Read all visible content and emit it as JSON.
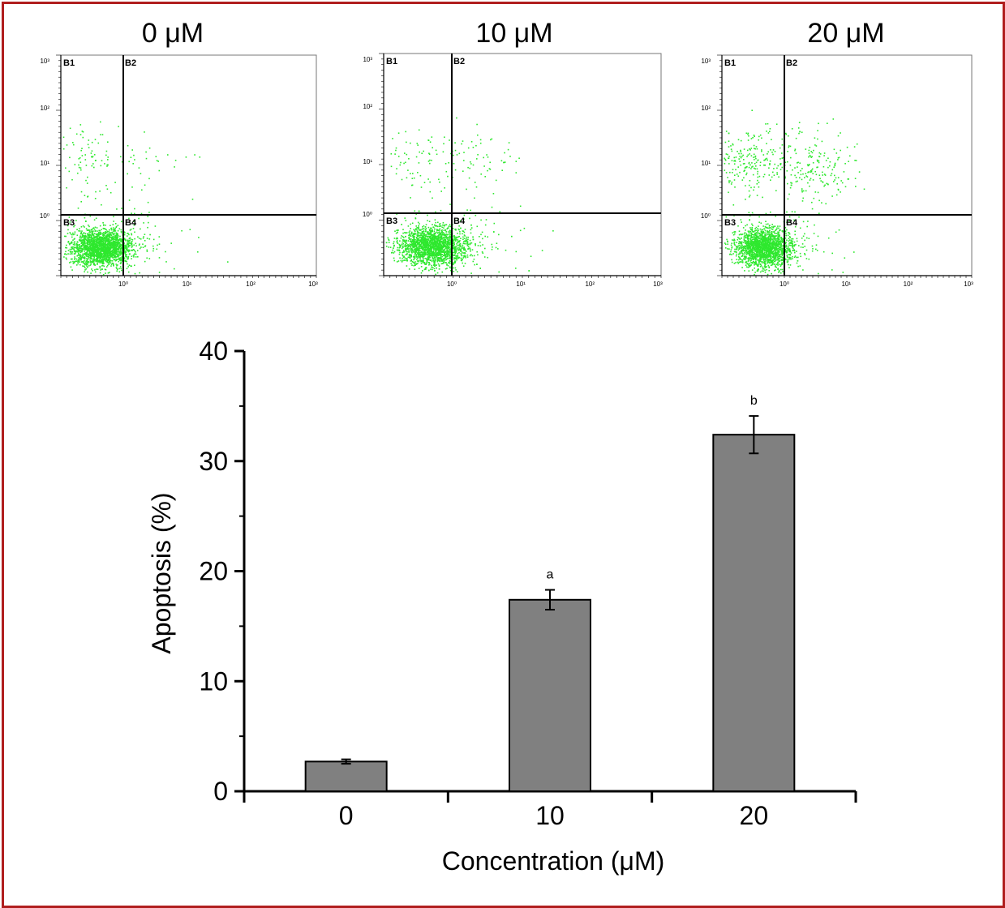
{
  "colors": {
    "frame": "#b01e1e",
    "bar": "#808080",
    "dots": "#2ee82e",
    "axis": "#000000"
  },
  "chart_data": [
    {
      "type": "scatter",
      "title": "0 μM",
      "quadrants": [
        "B1",
        "B2",
        "B3",
        "B4"
      ],
      "x_ticks": [
        "10⁰",
        "10¹",
        "10²",
        "10³"
      ],
      "y_ticks": [
        "10³",
        "10²",
        "10¹",
        "10⁰"
      ],
      "clusters": [
        {
          "quadrant": "B3/B4 border",
          "density": "dense",
          "count": 2200
        },
        {
          "quadrant": "B1",
          "density": "sparse",
          "count": 90
        },
        {
          "quadrant": "B2",
          "density": "sparse",
          "count": 30
        }
      ]
    },
    {
      "type": "scatter",
      "title": "10 μM",
      "quadrants": [
        "B1",
        "B2",
        "B3",
        "B4"
      ],
      "x_ticks": [
        "10⁰",
        "10¹",
        "10²",
        "10³"
      ],
      "y_ticks": [
        "10³",
        "10²",
        "10¹",
        "10⁰"
      ],
      "clusters": [
        {
          "quadrant": "B3/B4 border",
          "density": "dense",
          "count": 2300
        },
        {
          "quadrant": "B1",
          "density": "sparse",
          "count": 70
        },
        {
          "quadrant": "B2",
          "density": "sparse",
          "count": 70
        }
      ]
    },
    {
      "type": "scatter",
      "title": "20 μM",
      "quadrants": [
        "B1",
        "B2",
        "B3",
        "B4"
      ],
      "x_ticks": [
        "10⁰",
        "10¹",
        "10²",
        "10³"
      ],
      "y_ticks": [
        "10³",
        "10²",
        "10¹",
        "10⁰"
      ],
      "clusters": [
        {
          "quadrant": "B3/B4 border",
          "density": "dense",
          "count": 2000
        },
        {
          "quadrant": "B1",
          "density": "moderate",
          "count": 220
        },
        {
          "quadrant": "B2",
          "density": "moderate",
          "count": 200
        }
      ]
    },
    {
      "type": "bar",
      "categories": [
        "0",
        "10",
        "20"
      ],
      "values": [
        2.7,
        17.4,
        32.4
      ],
      "errors": [
        0.2,
        0.9,
        1.7
      ],
      "annotations": [
        "",
        "a",
        "b"
      ],
      "xlabel": "Concentration (μM)",
      "ylabel": "Apoptosis (%)",
      "ylim": [
        0,
        40
      ],
      "yticks": [
        "0",
        "10",
        "20",
        "30",
        "40"
      ],
      "grid": false,
      "legend": "none"
    }
  ]
}
